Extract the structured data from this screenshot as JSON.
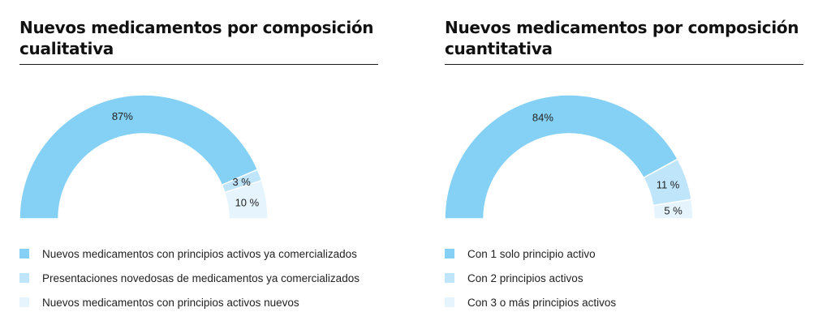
{
  "colors": {
    "slice1": "#85d1f5",
    "slice2": "#bfe5fb",
    "slice3": "#e5f4fd"
  },
  "chart_data": [
    {
      "type": "pie",
      "variant": "half-donut",
      "title": "Nuevos medicamentos por composición cualitativa",
      "categories": [
        "Nuevos medicamentos con principios activos ya comercializados",
        "Presentaciones novedosas de medicamentos ya comercializados",
        "Nuevos medicamentos con principios activos nuevos"
      ],
      "values": [
        87,
        3,
        10
      ],
      "value_labels": [
        "87%",
        "3 %",
        "10 %"
      ],
      "legend": "bottom"
    },
    {
      "type": "pie",
      "variant": "half-donut",
      "title": "Nuevos medicamentos por composición cuantitativa",
      "categories": [
        "Con 1 solo principio activo",
        "Con 2 principios activos",
        "Con 3 o más principios activos"
      ],
      "values": [
        84,
        11,
        5
      ],
      "value_labels": [
        "84%",
        "11 %",
        "5 %"
      ],
      "legend": "bottom"
    }
  ]
}
